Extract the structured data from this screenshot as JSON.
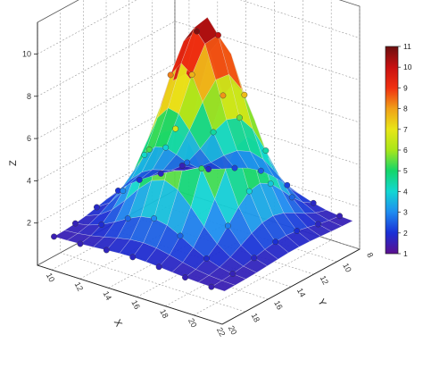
{
  "chart_data": {
    "type": "surface3d",
    "title": "",
    "xlabel": "X",
    "ylabel": "Y",
    "zlabel": "Z",
    "x_ticks": [
      "10",
      "12",
      "14",
      "16",
      "18",
      "20",
      "22"
    ],
    "y_ticks": [
      "8",
      "10",
      "12",
      "14",
      "16",
      "18",
      "20"
    ],
    "z_ticks": [
      "2",
      "4",
      "6",
      "8",
      "10"
    ],
    "xlim": [
      9,
      22
    ],
    "ylim": [
      8,
      20
    ],
    "zlim": [
      0,
      11.5
    ],
    "colorbar": {
      "min": 1,
      "max": 11,
      "ticks": [
        "1",
        "2",
        "3",
        "4",
        "5",
        "6",
        "7",
        "8",
        "9",
        "10",
        "11"
      ],
      "colors": [
        "#5b0f8e",
        "#1a2fd6",
        "#1e8cf0",
        "#12d7d2",
        "#14d66a",
        "#a8e61a",
        "#e8e618",
        "#f0a018",
        "#f03010",
        "#c81010",
        "#6b0f0f"
      ]
    },
    "surface": {
      "model": "gaussian-peak",
      "peak_x": 15.5,
      "peak_y": 13.5,
      "peak_z": 11.2,
      "base_z": 1.5,
      "sigma": 2.3
    },
    "grid": true
  }
}
